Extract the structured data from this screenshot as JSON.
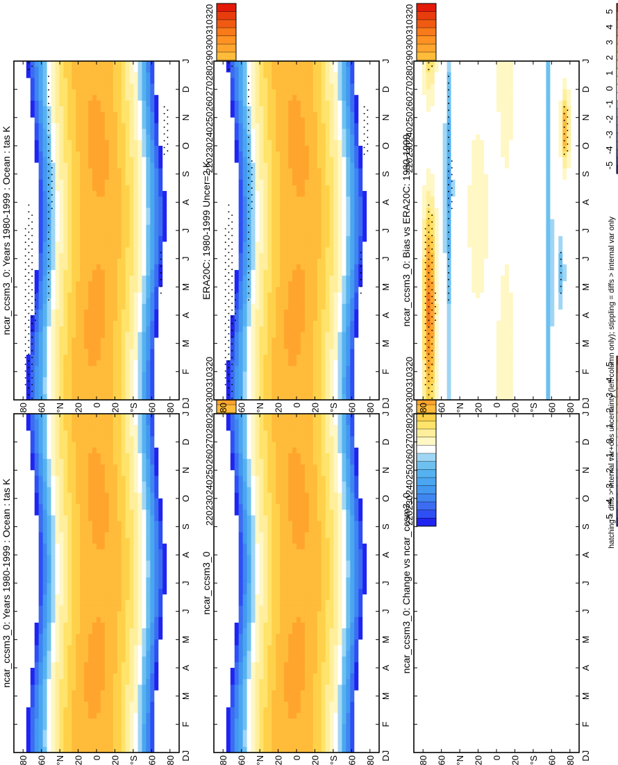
{
  "footer": "hatching = diffs > internal var+obs uncertainty (left column only); stippling = diffs > internal var only",
  "months": [
    "J",
    "F",
    "M",
    "A",
    "M",
    "J",
    "J",
    "A",
    "S",
    "O",
    "N",
    "D",
    "J"
  ],
  "lat_ticks": [
    "80",
    "60",
    "°N",
    "20",
    "0",
    "20",
    "°S",
    "60",
    "80"
  ],
  "month_axis_corner": "D",
  "palettes": {
    "temperature": [
      "#ffffff",
      "#ffffff",
      "#ffffff",
      "#ffffff",
      "#ffffff",
      "#1f24f0",
      "#2d4ff5",
      "#3b6cf2",
      "#3f86f0",
      "#4398f0",
      "#4aa6f1",
      "#55b2f0",
      "#6dc0f0",
      "#9fd6f5",
      "#ffffff",
      "#fff7c4",
      "#ffef9c",
      "#ffe36a",
      "#ffd14a",
      "#ffbb3a",
      "#ffa52e",
      "#ff9222",
      "#f87a1a",
      "#f05a12",
      "#e83c0c",
      "#e31a0a"
    ],
    "difference": [
      "#1f24f0",
      "#2d4ff5",
      "#3b6cf2",
      "#3f86f0",
      "#4398f0",
      "#4aa6f1",
      "#55b2f0",
      "#6dc0f0",
      "#9fd6f5",
      "#ffffff",
      "#ffffff",
      "#fff7c4",
      "#ffef9c",
      "#ffe36a",
      "#ffd14a",
      "#ffbb3a",
      "#ffa52e",
      "#ff9222",
      "#f87a1a",
      "#f05a12",
      "#e31a0a"
    ]
  },
  "chart_data": [
    {
      "id": "p1",
      "type": "heatmap",
      "title": "ncar_ccsm3_0: Years 1980-1999 : Ocean : tas K",
      "field": "model",
      "stipple": true,
      "colorbar": {
        "labels": [
          "320",
          "310",
          "300",
          "290",
          "280",
          "270",
          "260",
          "250",
          "240",
          "230",
          "220"
        ],
        "range": [
          215,
          325
        ]
      }
    },
    {
      "id": "p2",
      "type": "heatmap",
      "title": "ncar_ccsm3_0: Years 1980-1999 : Ocean : tas K",
      "field": "model",
      "stipple": false,
      "colorbar": {
        "labels": [
          "320",
          "310",
          "300",
          "290",
          "280",
          "270",
          "260",
          "250",
          "240",
          "230",
          "220"
        ],
        "range": [
          215,
          325
        ]
      }
    },
    {
      "id": "p3",
      "type": "heatmap",
      "title": "ERA20C: 1980-1999 Uncer=2 K",
      "field": "obs",
      "stipple": true,
      "colorbar": {
        "labels": [
          "320",
          "310",
          "300",
          "290",
          "280",
          "270",
          "260",
          "250",
          "240",
          "230",
          "220"
        ],
        "range": [
          215,
          325
        ]
      }
    },
    {
      "id": "p4",
      "type": "heatmap",
      "title": "ncar_ccsm3_0",
      "field": "model",
      "stipple": false,
      "colorbar": {
        "labels": [
          "320",
          "310",
          "300",
          "290",
          "280",
          "270",
          "260",
          "250",
          "240",
          "230",
          "220"
        ],
        "range": [
          215,
          325
        ]
      }
    },
    {
      "id": "p5",
      "type": "heatmap",
      "title": "ncar_ccsm3_0: Bias vs ERA20C: 1980-1999",
      "field": "bias",
      "stipple": true,
      "colorbar": {
        "labels": [
          "5",
          "4",
          "3",
          "2",
          "1",
          "0",
          "-1",
          "-2",
          "-3",
          "-4",
          "-5"
        ],
        "range": [
          -5.25,
          5.25
        ]
      }
    },
    {
      "id": "p6",
      "type": "heatmap",
      "title": "ncar_ccsm3_0: Change vs ncar_ccsm3_0",
      "field": "empty",
      "stipple": false,
      "colorbar": {
        "labels": [
          "5",
          "4",
          "3",
          "2",
          "1",
          "0",
          "-1",
          "-2",
          "-3",
          "-4",
          "-5"
        ],
        "range": [
          -5.25,
          5.25
        ]
      }
    }
  ]
}
